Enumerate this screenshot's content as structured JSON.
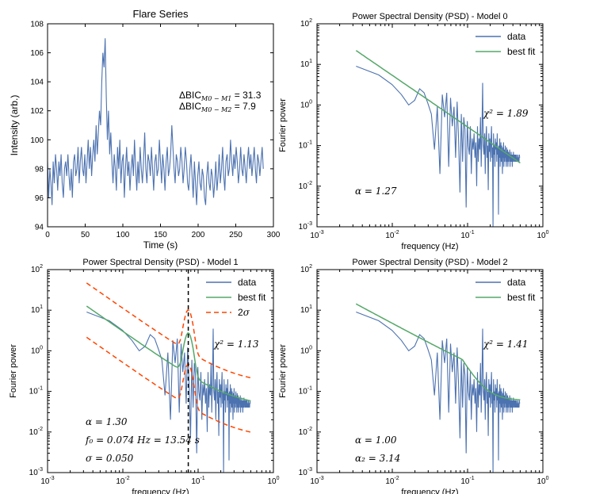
{
  "colors": {
    "data": "#4c72b0",
    "fit": "#55a868",
    "sigma": "#ff4500",
    "vline": "#000000"
  },
  "chart_data": [
    {
      "id": "flare",
      "type": "line",
      "title": "Flare Series",
      "xlabel": "Time (s)",
      "ylabel": "Intensity (arb.)",
      "xlim": [
        0,
        300
      ],
      "ylim": [
        94,
        108
      ],
      "xticks": [
        "0",
        "50",
        "100",
        "150",
        "200",
        "250",
        "300"
      ],
      "yticks": [
        "94",
        "96",
        "98",
        "100",
        "102",
        "104",
        "106",
        "108"
      ],
      "annotations": [
        {
          "name": "ΔBIC",
          "sub": "M0 − M1",
          "value": "= 31.3"
        },
        {
          "name": "ΔBIC",
          "sub": "M0 − M2",
          "value": "= 7.9"
        }
      ],
      "series": [
        {
          "name": "intensity",
          "x_start": 0,
          "x_step": 1.5,
          "values": [
            98.5,
            96.0,
            98.0,
            97.0,
            95.5,
            98.5,
            97.0,
            99.0,
            98.0,
            96.5,
            98.5,
            97.5,
            99.0,
            97.0,
            96.0,
            98.0,
            98.5,
            97.5,
            99.0,
            97.5,
            96.5,
            98.0,
            96.0,
            98.5,
            99.0,
            97.5,
            98.0,
            99.5,
            97.0,
            98.5,
            99.5,
            98.0,
            97.5,
            99.0,
            97.0,
            98.5,
            100.0,
            98.0,
            99.5,
            97.5,
            99.0,
            100.0,
            98.5,
            101.0,
            99.0,
            100.5,
            102.0,
            101.0,
            104.0,
            106.0,
            105.0,
            107.0,
            103.0,
            100.0,
            102.0,
            99.0,
            100.5,
            98.5,
            97.0,
            99.0,
            98.0,
            96.5,
            99.5,
            98.0,
            100.0,
            97.0,
            98.5,
            99.0,
            96.0,
            98.0,
            99.5,
            97.5,
            98.5,
            96.5,
            98.0,
            99.0,
            97.5,
            100.0,
            98.0,
            96.5,
            98.5,
            97.0,
            99.5,
            98.0,
            97.0,
            98.5,
            100.5,
            98.0,
            97.0,
            99.0,
            98.5,
            97.5,
            99.5,
            98.0,
            96.5,
            98.5,
            99.0,
            97.5,
            98.0,
            100.0,
            98.5,
            97.0,
            99.0,
            98.0,
            96.5,
            98.5,
            99.5,
            97.5,
            98.0,
            99.0,
            101.0,
            99.5,
            98.0,
            97.0,
            99.0,
            98.5,
            97.5,
            98.0,
            99.5,
            98.5,
            97.0,
            98.0,
            99.5,
            98.5,
            97.0,
            96.5,
            98.0,
            99.0,
            97.5,
            96.0,
            98.5,
            97.0,
            95.5,
            97.5,
            98.5,
            97.0,
            96.5,
            98.0,
            97.5,
            96.0,
            95.5,
            97.5,
            98.5,
            97.0,
            96.5,
            98.0,
            97.5,
            96.0,
            97.0,
            98.5,
            96.5,
            97.5,
            99.0,
            97.0,
            98.0,
            99.5,
            97.5,
            96.5,
            98.5,
            99.0,
            97.5,
            98.0,
            100.0,
            98.5,
            97.5,
            99.0,
            98.0,
            99.5,
            98.5,
            97.0,
            98.0,
            99.5,
            98.0,
            97.5,
            99.0,
            98.0,
            97.0,
            98.5,
            99.5,
            98.0,
            99.0,
            97.5,
            98.5,
            99.5,
            98.0,
            97.0,
            99.0,
            98.5,
            97.5,
            98.5,
            99.5,
            98.0
          ]
        }
      ]
    },
    {
      "id": "m0",
      "type": "line",
      "title": "Power Spectral Density (PSD) - Model 0",
      "xlabel": "frequency (Hz)",
      "ylabel": "Fourier power",
      "xscale": "log",
      "yscale": "log",
      "xlim": [
        0.001,
        1
      ],
      "ylim": [
        0.001,
        100
      ],
      "legend": [
        "data",
        "best fit"
      ],
      "annotations": [
        {
          "text": "χ² = 1.89"
        },
        {
          "text": "α = 1.27"
        }
      ],
      "fit": {
        "type": "powerlaw",
        "alpha": 1.27,
        "norm": 0.0155
      }
    },
    {
      "id": "m1",
      "type": "line",
      "title": "Power Spectral Density (PSD) - Model 1",
      "xlabel": "frequency (Hz)",
      "ylabel": "Fourier power",
      "xscale": "log",
      "yscale": "log",
      "xlim": [
        0.001,
        1
      ],
      "ylim": [
        0.001,
        100
      ],
      "legend": [
        "data",
        "best fit",
        "2σ"
      ],
      "annotations": [
        {
          "text": "χ² = 1.13"
        },
        {
          "text": "α = 1.30"
        },
        {
          "text": "f₀ = 0.074 Hz = 13.54 s"
        },
        {
          "text": "σ = 0.050"
        }
      ],
      "vline": 0.074,
      "fit": {
        "type": "powerlaw+gauss",
        "alpha": 1.3,
        "norm": 0.0075,
        "f0": 0.074,
        "sigma": 0.05,
        "amp": 2.5,
        "const": 0.04
      },
      "sigma_band": {
        "upper_factor": 3.7,
        "lower_factor": 0.17
      }
    },
    {
      "id": "m2",
      "type": "line",
      "title": "Power Spectral Density (PSD) - Model 2",
      "xlabel": "frequency (Hz)",
      "ylabel": "Fourier power",
      "xscale": "log",
      "yscale": "log",
      "xlim": [
        0.001,
        1
      ],
      "ylim": [
        0.001,
        100
      ],
      "legend": [
        "data",
        "best fit"
      ],
      "annotations": [
        {
          "text": "χ² = 1.41"
        },
        {
          "text": "α = 1.00"
        },
        {
          "text": "α₂ = 3.14"
        }
      ],
      "fit": {
        "type": "broken",
        "alpha1": 1.0,
        "alpha2": 3.14,
        "fb": 0.085,
        "norm": 0.047,
        "const": 0.06
      }
    }
  ],
  "psd_data": {
    "freq_start": 0.0033,
    "freq_step": 0.0033,
    "power": [
      9.0,
      5.5,
      3.2,
      1.8,
      1.0,
      1.3,
      2.5,
      2.0,
      1.1,
      0.6,
      0.08,
      0.9,
      0.02,
      1.8,
      0.5,
      2.0,
      0.03,
      1.5,
      0.3,
      0.9,
      0.05,
      1.2,
      0.15,
      0.007,
      0.6,
      0.04,
      0.5,
      0.25,
      0.003,
      0.4,
      0.1,
      0.06,
      0.3,
      0.02,
      0.15,
      0.08,
      0.2,
      0.05,
      0.12,
      0.01,
      0.3,
      0.04,
      0.15,
      0.08,
      0.5,
      0.03,
      0.2,
      3.5,
      0.1,
      0.06,
      0.2,
      0.02,
      0.15,
      0.3,
      0.05,
      0.1,
      0.008,
      0.2,
      0.07,
      0.15,
      0.04,
      0.12,
      0.3,
      0.05,
      0.09,
      0.001,
      0.2,
      0.06,
      0.1,
      0.03,
      0.15,
      0.08,
      0.12,
      0.04,
      0.2,
      0.06,
      0.09,
      0.002,
      0.1,
      0.05,
      0.15,
      0.03,
      0.08,
      0.12,
      0.04,
      0.1,
      0.06,
      0.02,
      0.09,
      0.05,
      0.12,
      0.03,
      0.08,
      0.06,
      0.04,
      0.1,
      0.05,
      0.07,
      0.03,
      0.09,
      0.04,
      0.06,
      0.08,
      0.03,
      0.05,
      0.07,
      0.04,
      0.06,
      0.05,
      0.08,
      0.03,
      0.06,
      0.04,
      0.05,
      0.07,
      0.04,
      0.06,
      0.05,
      0.03,
      0.06,
      0.05,
      0.04,
      0.07,
      0.05,
      0.06,
      0.04,
      0.05,
      0.06,
      0.04,
      0.05,
      0.06,
      0.05,
      0.04,
      0.05,
      0.06,
      0.05,
      0.04,
      0.05,
      0.05,
      0.04,
      0.06,
      0.05,
      0.04,
      0.05,
      0.05,
      0.04,
      0.05,
      0.06,
      0.05
    ]
  }
}
